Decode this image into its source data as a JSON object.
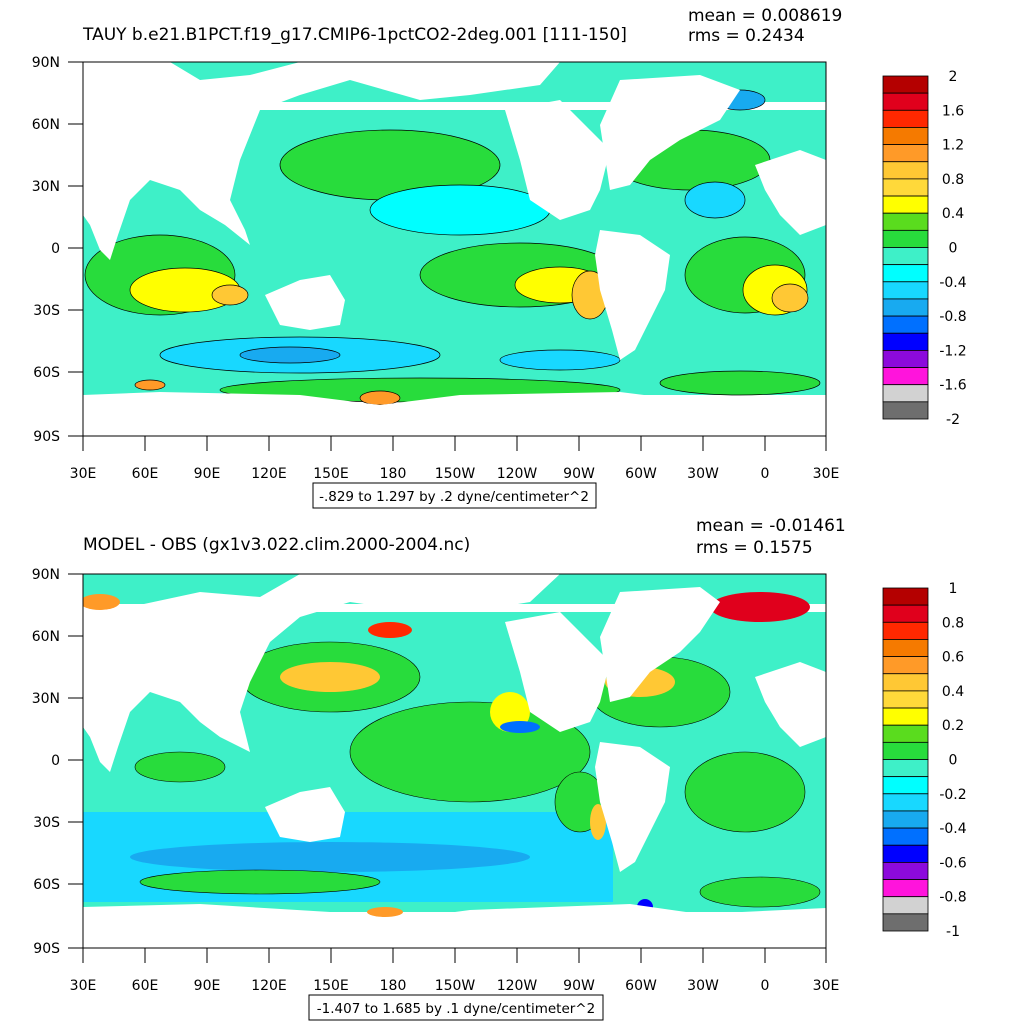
{
  "panels": [
    {
      "title": "TAUY b.e21.B1PCT.f19_g17.CMIP6-1pctCO2-2deg.001 [111-150]",
      "mean": "mean = 0.008619",
      "rms": "rms = 0.2434",
      "range_note": "-.829 to 1.297 by .2 dyne/centimeter^2",
      "lat_labels": [
        "90N",
        "60N",
        "30N",
        "0",
        "30S",
        "60S",
        "90S"
      ],
      "lon_labels": [
        "30E",
        "60E",
        "90E",
        "120E",
        "150E",
        "180",
        "150W",
        "120W",
        "90W",
        "60W",
        "30W",
        "0",
        "30E"
      ],
      "colorbar_labels": [
        "2",
        "1.6",
        "1.2",
        "0.8",
        "0.4",
        "0",
        "-0.4",
        "-0.8",
        "-1.2",
        "-1.6",
        "-2"
      ],
      "colorbar_colors": [
        "#b40000",
        "#e0001c",
        "#ff2800",
        "#f57a00",
        "#ff9a28",
        "#ffc834",
        "#ffd93a",
        "#ffff00",
        "#5adc1e",
        "#28dc3c",
        "#3ef0c8",
        "#00ffff",
        "#18d8ff",
        "#18aaf0",
        "#0070ff",
        "#0000ff",
        "#8c0adc",
        "#ff14dc",
        "#d2d2d2",
        "#6e6e6e"
      ],
      "chart_data": {
        "type": "heatmap",
        "title": "TAUY b.e21.B1PCT.f19_g17.CMIP6-1pctCO2-2deg.001 [111-150]",
        "variable": "TAUY",
        "units": "dyne/centimeter^2",
        "mean": 0.008619,
        "rms": 0.2434,
        "data_min": -0.829,
        "data_max": 1.297,
        "contour_interval": 0.2,
        "color_levels": [
          -2,
          -1.6,
          -1.2,
          -0.8,
          -0.4,
          0,
          0.4,
          0.8,
          1.2,
          1.6,
          2
        ]
      }
    },
    {
      "title": "MODEL - OBS (gx1v3.022.clim.2000-2004.nc)",
      "mean": "mean = -0.01461",
      "rms": "rms = 0.1575",
      "range_note": "-1.407 to 1.685 by .1 dyne/centimeter^2",
      "lat_labels": [
        "90N",
        "60N",
        "30N",
        "0",
        "30S",
        "60S",
        "90S"
      ],
      "lon_labels": [
        "30E",
        "60E",
        "90E",
        "120E",
        "150E",
        "180",
        "150W",
        "120W",
        "90W",
        "60W",
        "30W",
        "0",
        "30E"
      ],
      "colorbar_labels": [
        "1",
        "0.8",
        "0.6",
        "0.4",
        "0.2",
        "0",
        "-0.2",
        "-0.4",
        "-0.6",
        "-0.8",
        "-1"
      ],
      "colorbar_colors": [
        "#b40000",
        "#e0001c",
        "#ff2800",
        "#f57a00",
        "#ff9a28",
        "#ffc834",
        "#ffd93a",
        "#ffff00",
        "#5adc1e",
        "#28dc3c",
        "#3ef0c8",
        "#00ffff",
        "#18d8ff",
        "#18aaf0",
        "#0070ff",
        "#0000ff",
        "#8c0adc",
        "#ff14dc",
        "#d2d2d2",
        "#6e6e6e"
      ],
      "chart_data": {
        "type": "heatmap",
        "title": "MODEL - OBS (gx1v3.022.clim.2000-2004.nc)",
        "variable": "TAUY difference",
        "units": "dyne/centimeter^2",
        "mean": -0.01461,
        "rms": 0.1575,
        "data_min": -1.407,
        "data_max": 1.685,
        "contour_interval": 0.1,
        "color_levels": [
          -1,
          -0.8,
          -0.6,
          -0.4,
          -0.2,
          0,
          0.2,
          0.4,
          0.6,
          0.8,
          1
        ]
      }
    }
  ]
}
